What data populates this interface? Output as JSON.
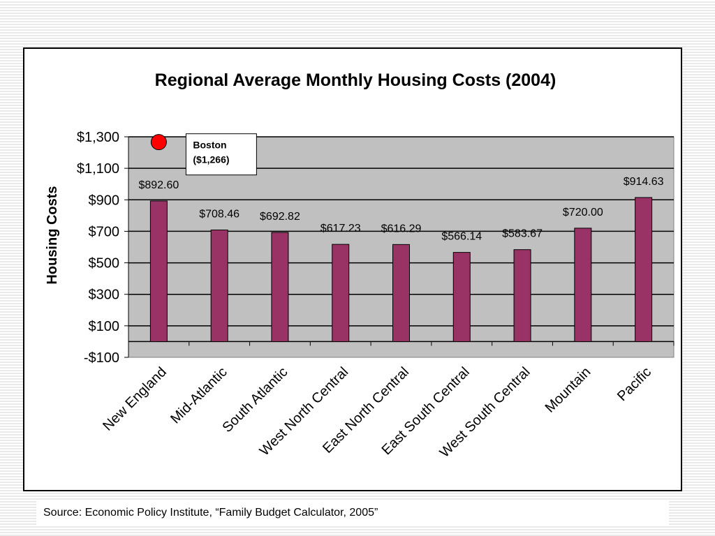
{
  "chart_data": {
    "type": "bar",
    "title": "Regional Average Monthly Housing Costs (2004)",
    "ylabel": "Housing Costs",
    "xlabel": "",
    "categories": [
      "New England",
      "Mid-Atlantic",
      "South Atlantic",
      "West North Central",
      "East North Central",
      "East South Central",
      "West South Central",
      "Mountain",
      "Pacific"
    ],
    "values": [
      892.6,
      708.46,
      692.82,
      617.23,
      616.29,
      566.14,
      583.67,
      720.0,
      914.63
    ],
    "data_labels": [
      "$892.60",
      "$708.46",
      "$692.82",
      "$617.23",
      "$616.29",
      "$566.14",
      "$583.67",
      "$720.00",
      "$914.63"
    ],
    "ylim": [
      -100,
      1300
    ],
    "yticks": [
      -100,
      100,
      300,
      500,
      700,
      900,
      1100,
      1300
    ],
    "ytick_labels": [
      "-$100",
      "$100",
      "$300",
      "$500",
      "$700",
      "$900",
      "$1,100",
      "$1,300"
    ],
    "grid": true,
    "legend": "none",
    "bar_color": "#993366",
    "plot_background": "#c0c0c0",
    "marker": {
      "category": "New England",
      "value": 1266,
      "color": "#ff0000",
      "label_line1": "Boston",
      "label_line2": "($1,266)"
    }
  },
  "source_text": "Source: Economic Policy Institute, “Family Budget Calculator, 2005”"
}
